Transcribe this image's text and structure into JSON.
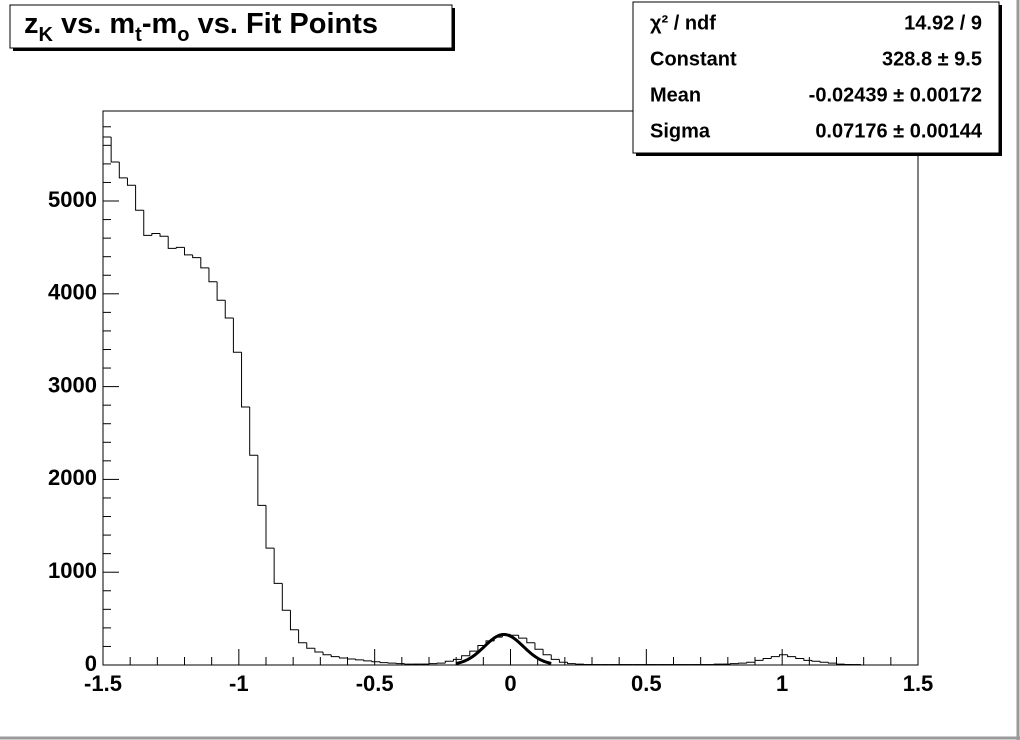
{
  "chart_data": {
    "type": "histogram",
    "title_parts": [
      "z",
      "K",
      " vs. m",
      "t",
      "-m",
      "o",
      " vs. Fit Points"
    ],
    "bins": [
      -1.5,
      -1.47,
      -1.44,
      -1.41,
      -1.38,
      -1.35,
      -1.32,
      -1.29,
      -1.26,
      -1.23,
      -1.2,
      -1.17,
      -1.14,
      -1.11,
      -1.08,
      -1.05,
      -1.02,
      -0.99,
      -0.96,
      -0.93,
      -0.9,
      -0.87,
      -0.84,
      -0.81,
      -0.78,
      -0.75,
      -0.72,
      -0.69,
      -0.66,
      -0.63,
      -0.6,
      -0.57,
      -0.54,
      -0.51,
      -0.48,
      -0.45,
      -0.42,
      -0.39,
      -0.36,
      -0.33,
      -0.3,
      -0.27,
      -0.24,
      -0.21,
      -0.18,
      -0.15,
      -0.12,
      -0.09,
      -0.06,
      -0.03,
      0,
      0.03,
      0.06,
      0.09,
      0.12,
      0.15,
      0.18,
      0.21,
      0.24,
      0.27,
      0.3,
      0.33,
      0.36,
      0.39,
      0.42,
      0.45,
      0.48,
      0.51,
      0.54,
      0.57,
      0.6,
      0.63,
      0.66,
      0.69,
      0.72,
      0.75,
      0.78,
      0.81,
      0.84,
      0.87,
      0.9,
      0.93,
      0.96,
      0.99,
      1.02,
      1.05,
      1.08,
      1.11,
      1.14,
      1.17,
      1.2,
      1.23,
      1.26,
      1.29,
      1.32,
      1.35,
      1.38,
      1.41,
      1.44,
      1.47,
      1.5
    ],
    "values": [
      5690,
      5420,
      5250,
      5170,
      4900,
      4630,
      4650,
      4620,
      4490,
      4500,
      4420,
      4390,
      4280,
      4130,
      3930,
      3740,
      3370,
      2780,
      2260,
      1720,
      1260,
      880,
      590,
      380,
      240,
      180,
      140,
      110,
      90,
      75,
      65,
      55,
      45,
      35,
      25,
      20,
      15,
      10,
      10,
      10,
      15,
      20,
      40,
      60,
      100,
      150,
      210,
      260,
      300,
      330,
      320,
      290,
      240,
      170,
      110,
      60,
      30,
      15,
      10,
      5,
      5,
      5,
      5,
      5,
      5,
      5,
      5,
      5,
      5,
      5,
      5,
      5,
      5,
      5,
      5,
      10,
      10,
      15,
      20,
      30,
      50,
      70,
      90,
      110,
      90,
      70,
      50,
      40,
      30,
      20,
      10,
      5,
      5,
      0,
      0,
      0,
      0,
      0,
      0,
      0
    ],
    "color": "#000000",
    "xlim": [
      -1.5,
      1.5
    ],
    "xticks": [
      -1.5,
      -1,
      -0.5,
      0,
      0.5,
      1,
      1.5
    ],
    "ylim": [
      0,
      5970
    ],
    "yticks": [
      0,
      1000,
      2000,
      3000,
      4000,
      5000
    ],
    "fit": {
      "constant": 328.8,
      "mean": -0.02439,
      "sigma": 0.07176,
      "range": [
        -0.2,
        0.15
      ]
    },
    "stats": [
      [
        "χ² / ndf",
        "14.92 / 9"
      ],
      [
        "Constant",
        "328.8 ± 9.5"
      ],
      [
        "Mean",
        "-0.02439 ± 0.00172"
      ],
      [
        "Sigma",
        "0.07176 ± 0.00144"
      ]
    ]
  }
}
